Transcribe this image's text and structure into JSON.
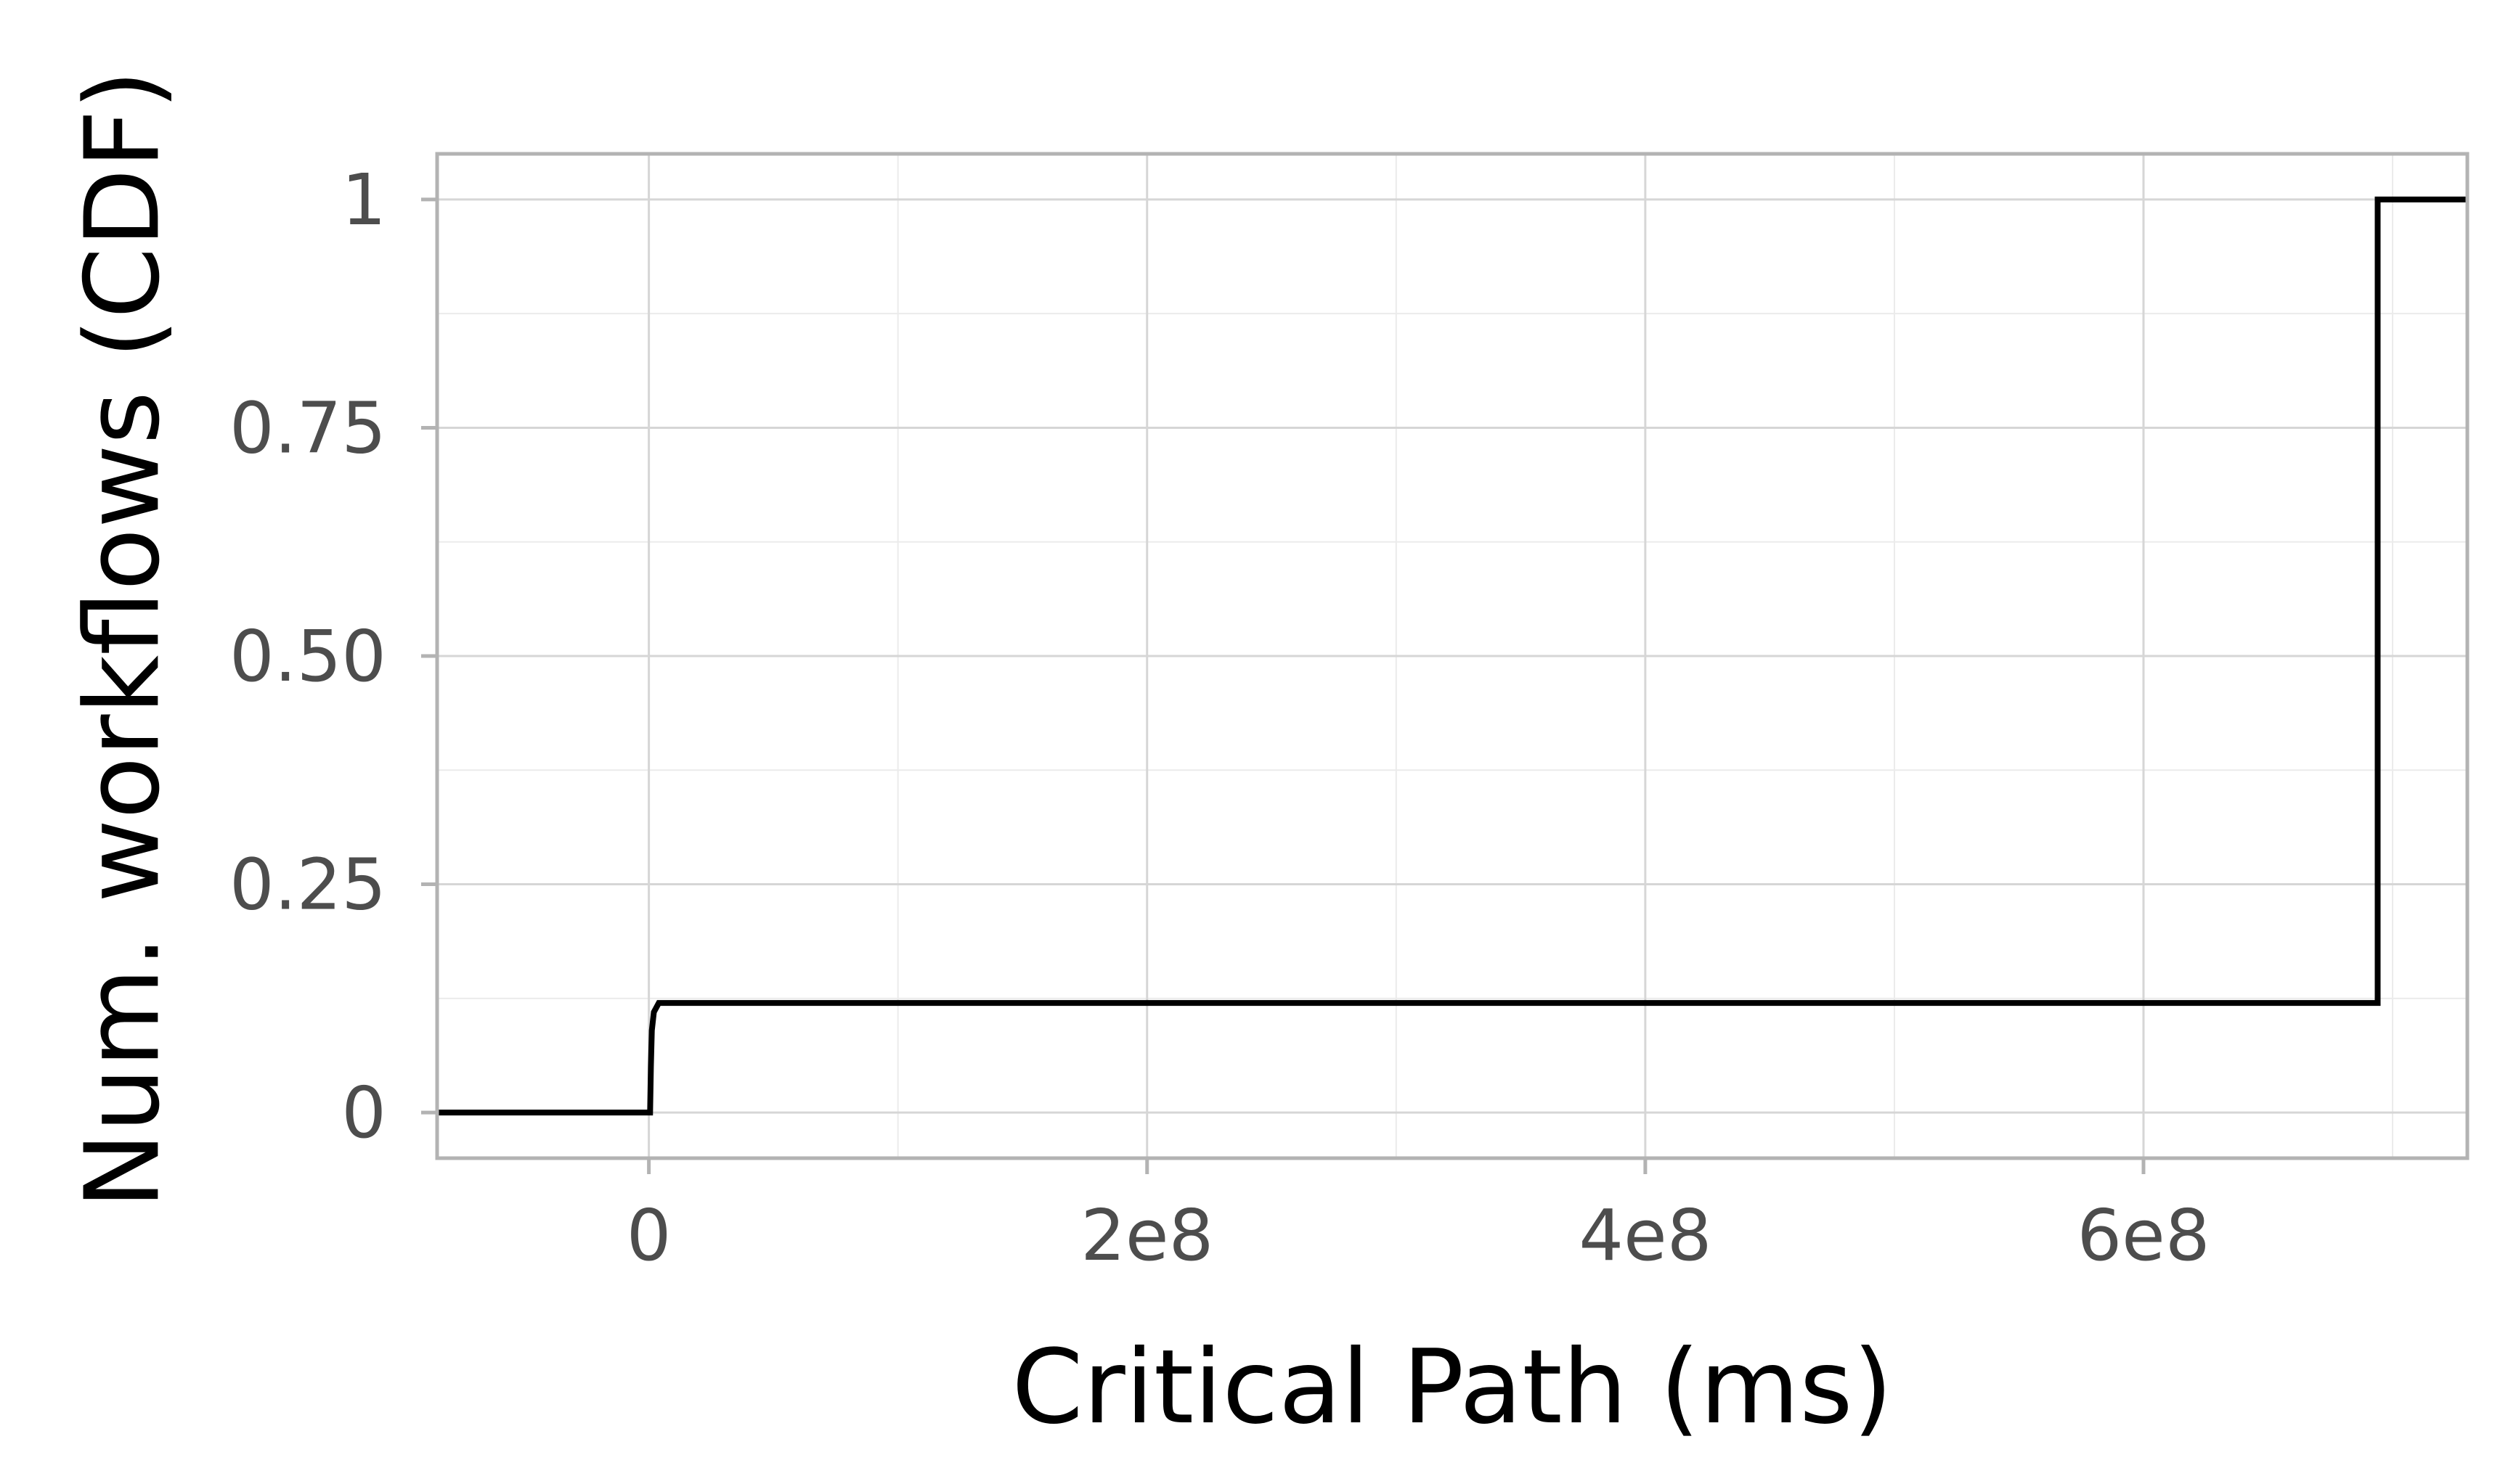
{
  "chart_data": {
    "type": "line",
    "title": "",
    "xlabel": "Critical Path (ms)",
    "ylabel": "Num. workflows (CDF)",
    "xlim": [
      -85000000,
      730000000
    ],
    "ylim": [
      -0.05,
      1.05
    ],
    "x_ticks": [
      {
        "value": 0,
        "label": "0"
      },
      {
        "value": 200000000,
        "label": "2e8"
      },
      {
        "value": 400000000,
        "label": "4e8"
      },
      {
        "value": 600000000,
        "label": "6e8"
      }
    ],
    "y_ticks": [
      {
        "value": 0,
        "label": "0"
      },
      {
        "value": 0.25,
        "label": "0.25"
      },
      {
        "value": 0.5,
        "label": "0.50"
      },
      {
        "value": 0.75,
        "label": "0.75"
      },
      {
        "value": 1,
        "label": "1"
      }
    ],
    "grid": true,
    "series": [
      {
        "step": true,
        "color": "#000000",
        "points": [
          {
            "x": -85000000,
            "y": 0
          },
          {
            "x": 500000,
            "y": 0
          },
          {
            "x": 800000,
            "y": 0.05
          },
          {
            "x": 1200000,
            "y": 0.09
          },
          {
            "x": 2000000,
            "y": 0.11
          },
          {
            "x": 4000000,
            "y": 0.12
          },
          {
            "x": 694000000,
            "y": 0.12
          },
          {
            "x": 694000000,
            "y": 1
          },
          {
            "x": 730000000,
            "y": 1
          }
        ]
      }
    ]
  }
}
